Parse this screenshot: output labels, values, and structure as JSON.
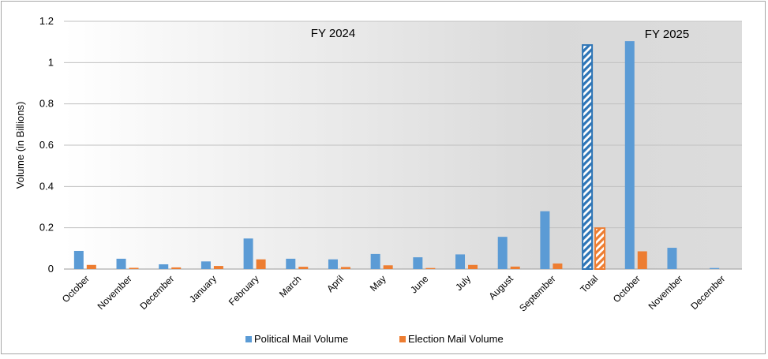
{
  "chart_data": {
    "type": "bar",
    "ylabel": "Volume (in Billions)",
    "ylim": [
      0,
      1.2
    ],
    "yticks": [
      "0",
      "0.2",
      "0.4",
      "0.6",
      "0.8",
      "1",
      "1.2"
    ],
    "grid": true,
    "legend_position": "bottom",
    "categories": [
      "October",
      "November",
      "December",
      "January",
      "February",
      "March",
      "April",
      "May",
      "June",
      "July",
      "August",
      "September",
      "Total",
      "October",
      "November",
      "December"
    ],
    "series": [
      {
        "name": "Political Mail Volume",
        "color": "#5b9bd5",
        "values": [
          0.088,
          0.05,
          0.023,
          0.037,
          0.148,
          0.05,
          0.047,
          0.073,
          0.057,
          0.071,
          0.156,
          0.28,
          1.085,
          1.104,
          0.103,
          0.005
        ]
      },
      {
        "name": "Election Mail Volume",
        "color": "#ed7d31",
        "values": [
          0.02,
          0.006,
          0.008,
          0.015,
          0.047,
          0.011,
          0.01,
          0.018,
          0.005,
          0.02,
          0.012,
          0.027,
          0.198,
          0.086,
          0.0,
          0.0
        ]
      }
    ],
    "highlighted_category": "Total",
    "annotations": [
      "FY 2024",
      "FY 2025"
    ]
  }
}
